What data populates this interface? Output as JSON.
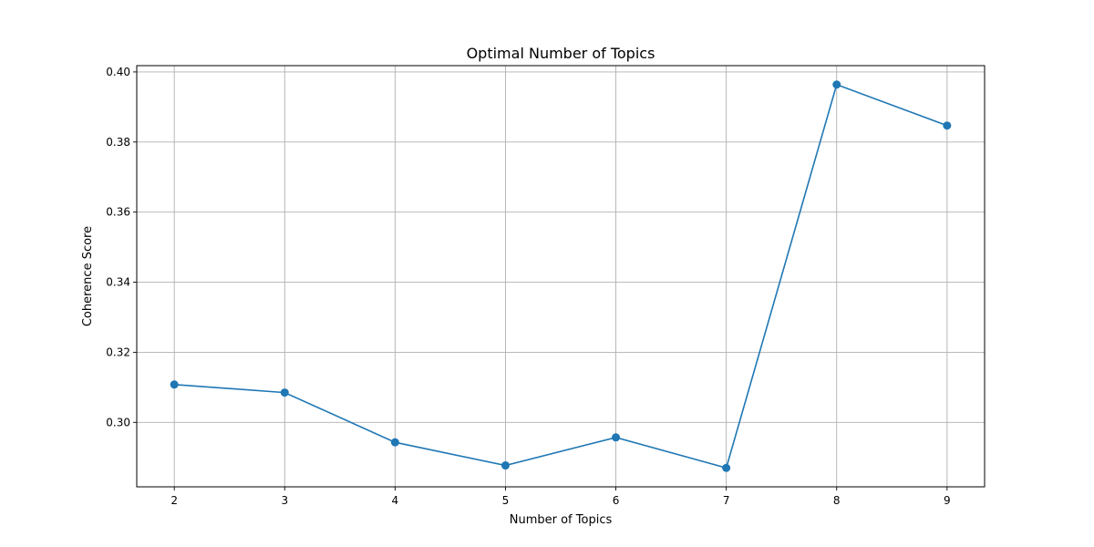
{
  "chart_data": {
    "type": "line",
    "title": "Optimal Number of Topics",
    "xlabel": "Number of Topics",
    "ylabel": "Coherence Score",
    "x": [
      2,
      3,
      4,
      5,
      6,
      7,
      8,
      9
    ],
    "series": [
      {
        "values": [
          0.3108,
          0.3085,
          0.2943,
          0.2877,
          0.2957,
          0.287,
          0.3964,
          0.3847
        ],
        "color": "#1f77b4",
        "marker": "circle"
      }
    ],
    "xticks": [
      "2",
      "3",
      "4",
      "5",
      "6",
      "7",
      "8",
      "9"
    ],
    "yticks": [
      "0.30",
      "0.32",
      "0.34",
      "0.36",
      "0.38",
      "0.40"
    ],
    "xlim": [
      1.66,
      9.34
    ],
    "ylim": [
      0.2816,
      0.4018
    ],
    "grid": true,
    "legend": "none"
  }
}
